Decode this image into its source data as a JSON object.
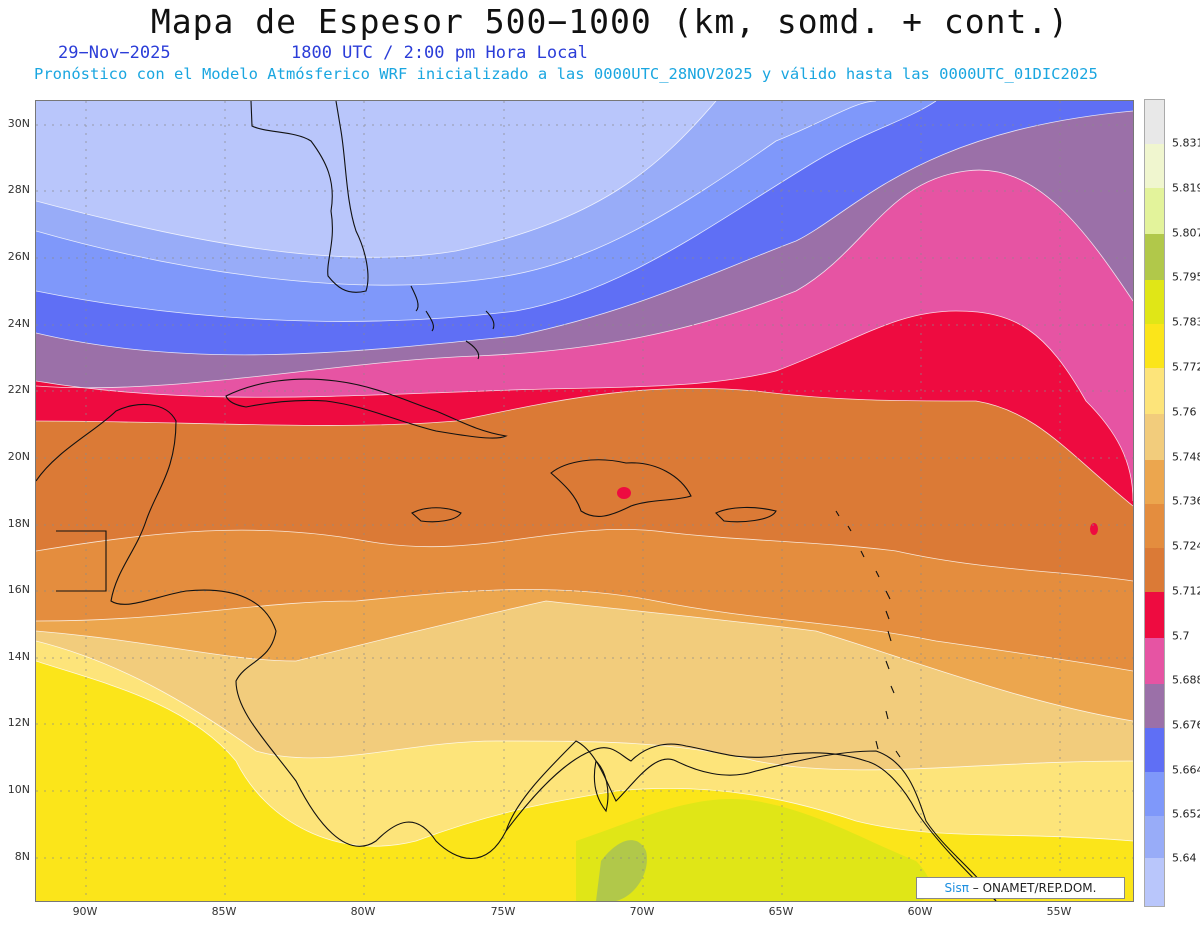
{
  "header": {
    "title": "Mapa de Espesor 500−1000 (km, somd. + cont.)",
    "date": "29−Nov−2025",
    "valid_time": "1800 UTC / 2:00 pm Hora Local",
    "subtitle": "Pronóstico con el Modelo Atmósferico WRF inicializado a las 0000UTC_28NOV2025 y válido hasta las  0000UTC_01DIC2025"
  },
  "axes": {
    "lat_labels": [
      "30N",
      "28N",
      "26N",
      "24N",
      "22N",
      "20N",
      "18N",
      "16N",
      "14N",
      "12N",
      "10N",
      "8N"
    ],
    "lon_labels": [
      "90W",
      "85W",
      "80W",
      "75W",
      "70W",
      "65W",
      "60W",
      "55W"
    ]
  },
  "legend": {
    "levels": [
      "5.64",
      "5.652",
      "5.664",
      "5.676",
      "5.688",
      "5.7",
      "5.712",
      "5.724",
      "5.736",
      "5.748",
      "5.76",
      "5.772",
      "5.783",
      "5.795",
      "5.807",
      "5.819",
      "5.831"
    ],
    "colors": [
      "#b9c6fb",
      "#98acf8",
      "#7f98fa",
      "#5f6ff5",
      "#9b70a8",
      "#e654a3",
      "#ee0b40",
      "#db7a36",
      "#e48d3e",
      "#eca64e",
      "#f2cc7c",
      "#fde47a",
      "#fbe51a",
      "#e0e617",
      "#b1c84a",
      "#e3f39b",
      "#f0f6cf",
      "#e8e8e8"
    ]
  },
  "credit": {
    "logo": "Sisπ",
    "text": "– ONAMET/REP.DOM."
  }
}
